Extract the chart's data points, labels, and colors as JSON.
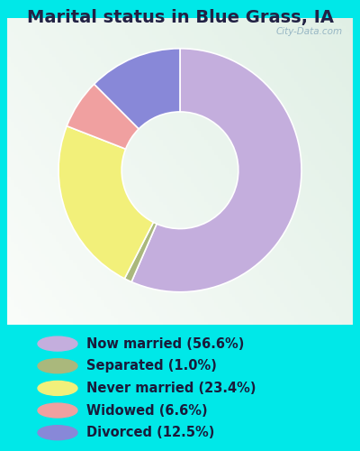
{
  "title": "Marital status in Blue Grass, IA",
  "slices": [
    {
      "label": "Now married (56.6%)",
      "value": 56.6,
      "color": "#c4aedd"
    },
    {
      "label": "Separated (1.0%)",
      "value": 1.0,
      "color": "#aab87c"
    },
    {
      "label": "Never married (23.4%)",
      "value": 23.4,
      "color": "#f2f07a"
    },
    {
      "label": "Widowed (6.6%)",
      "value": 6.6,
      "color": "#f0a0a0"
    },
    {
      "label": "Divorced (12.5%)",
      "value": 12.5,
      "color": "#8888d8"
    }
  ],
  "bg_outer": "#00e8e8",
  "watermark": "City-Data.com",
  "title_fontsize": 14,
  "title_color": "#222244",
  "legend_fontsize": 10.5,
  "legend_text_color": "#1a1a3a",
  "donut_width": 0.52,
  "chart_bg_colors": [
    "#e8f5ee",
    "#f0f8f2",
    "#ddeee8",
    "#c8e8d8"
  ],
  "chart_edge_color": "#c0d8c8"
}
